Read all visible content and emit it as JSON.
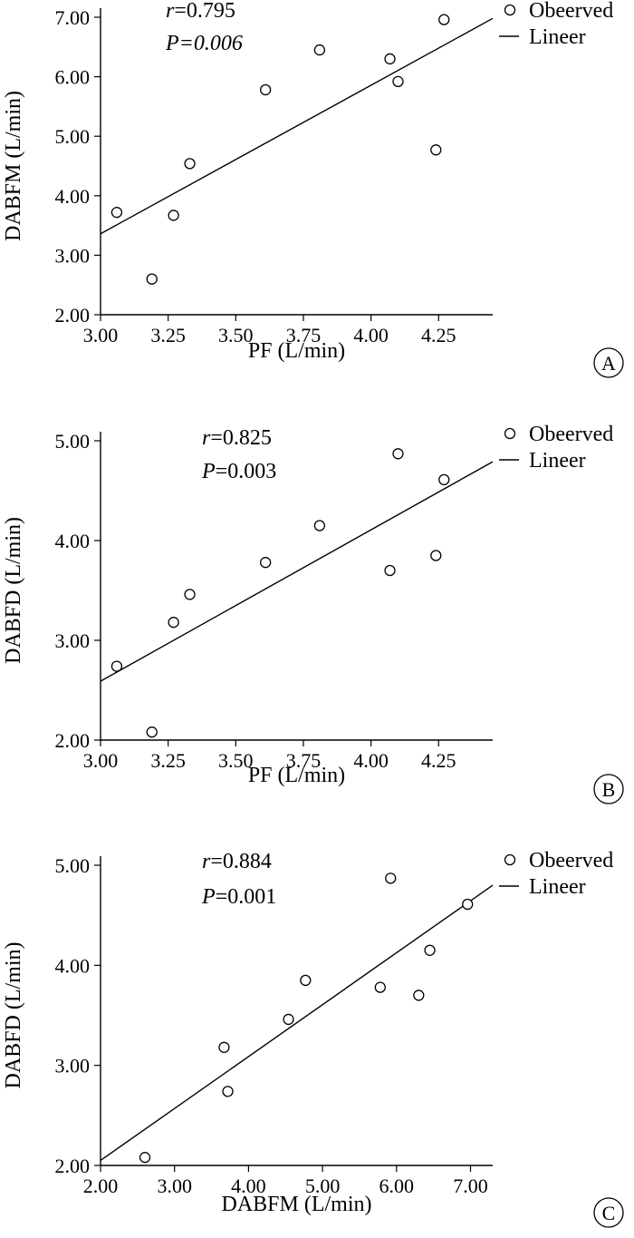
{
  "chart_data": [
    {
      "type": "scatter",
      "panel_letter": "A",
      "xlabel": "PF (L/min)",
      "ylabel": "DABFM (L/min)",
      "xlim": [
        3.0,
        4.45
      ],
      "ylim": [
        2.0,
        7.0
      ],
      "xticks": [
        "3.00",
        "3.25",
        "3.50",
        "3.75",
        "4.00",
        "4.25"
      ],
      "yticks": [
        "2.00",
        "3.00",
        "4.00",
        "5.00",
        "6.00",
        "7.00"
      ],
      "stat_r_label": "r",
      "stat_r_value": "=0.795",
      "stat_p_label": "P",
      "stat_p_value": "=0.006",
      "legend": [
        "Obeerved",
        "Lineer"
      ],
      "points": [
        {
          "x": 3.06,
          "y": 3.72
        },
        {
          "x": 3.19,
          "y": 2.6
        },
        {
          "x": 3.27,
          "y": 3.67
        },
        {
          "x": 3.33,
          "y": 4.54
        },
        {
          "x": 3.61,
          "y": 5.78
        },
        {
          "x": 3.81,
          "y": 6.45
        },
        {
          "x": 4.07,
          "y": 6.3
        },
        {
          "x": 4.1,
          "y": 5.92
        },
        {
          "x": 4.24,
          "y": 4.77
        },
        {
          "x": 4.27,
          "y": 6.96
        }
      ],
      "fit_line": {
        "x": [
          3.0,
          4.45
        ],
        "y": [
          3.36,
          6.98
        ]
      }
    },
    {
      "type": "scatter",
      "panel_letter": "B",
      "xlabel": "PF (L/min)",
      "ylabel": "DABFD (L/min)",
      "xlim": [
        3.0,
        4.45
      ],
      "ylim": [
        2.0,
        5.0
      ],
      "xticks": [
        "3.00",
        "3.25",
        "3.50",
        "3.75",
        "4.00",
        "4.25"
      ],
      "yticks": [
        "2.00",
        "3.00",
        "4.00",
        "5.00"
      ],
      "stat_r_label": "r",
      "stat_r_value": "=0.825",
      "stat_p_label": "P",
      "stat_p_value": "=0.003",
      "legend": [
        "Obeerved",
        "Lineer"
      ],
      "points": [
        {
          "x": 3.06,
          "y": 2.74
        },
        {
          "x": 3.19,
          "y": 2.08
        },
        {
          "x": 3.27,
          "y": 3.18
        },
        {
          "x": 3.33,
          "y": 3.46
        },
        {
          "x": 3.61,
          "y": 3.78
        },
        {
          "x": 3.81,
          "y": 4.15
        },
        {
          "x": 4.07,
          "y": 3.7
        },
        {
          "x": 4.1,
          "y": 4.87
        },
        {
          "x": 4.24,
          "y": 3.85
        },
        {
          "x": 4.27,
          "y": 4.61
        }
      ],
      "fit_line": {
        "x": [
          3.0,
          4.45
        ],
        "y": [
          2.59,
          4.79
        ]
      }
    },
    {
      "type": "scatter",
      "panel_letter": "C",
      "xlabel": "DABFM (L/min)",
      "ylabel": "DABFD (L/min)",
      "xlim": [
        2.0,
        7.3
      ],
      "ylim": [
        2.0,
        5.0
      ],
      "xticks": [
        "2.00",
        "3.00",
        "4.00",
        "5.00",
        "6.00",
        "7.00"
      ],
      "yticks": [
        "2.00",
        "3.00",
        "4.00",
        "5.00"
      ],
      "stat_r_label": "r",
      "stat_r_value": "=0.884",
      "stat_p_label": "P",
      "stat_p_value": "=0.001",
      "legend": [
        "Obeerved",
        "Lineer"
      ],
      "points": [
        {
          "x": 2.6,
          "y": 2.08
        },
        {
          "x": 3.67,
          "y": 3.18
        },
        {
          "x": 3.72,
          "y": 2.74
        },
        {
          "x": 4.54,
          "y": 3.46
        },
        {
          "x": 4.77,
          "y": 3.85
        },
        {
          "x": 5.78,
          "y": 3.78
        },
        {
          "x": 5.92,
          "y": 4.87
        },
        {
          "x": 6.3,
          "y": 3.7
        },
        {
          "x": 6.45,
          "y": 4.15
        },
        {
          "x": 6.96,
          "y": 4.61
        }
      ],
      "fit_line": {
        "x": [
          2.0,
          7.3
        ],
        "y": [
          2.05,
          4.8
        ]
      }
    }
  ]
}
